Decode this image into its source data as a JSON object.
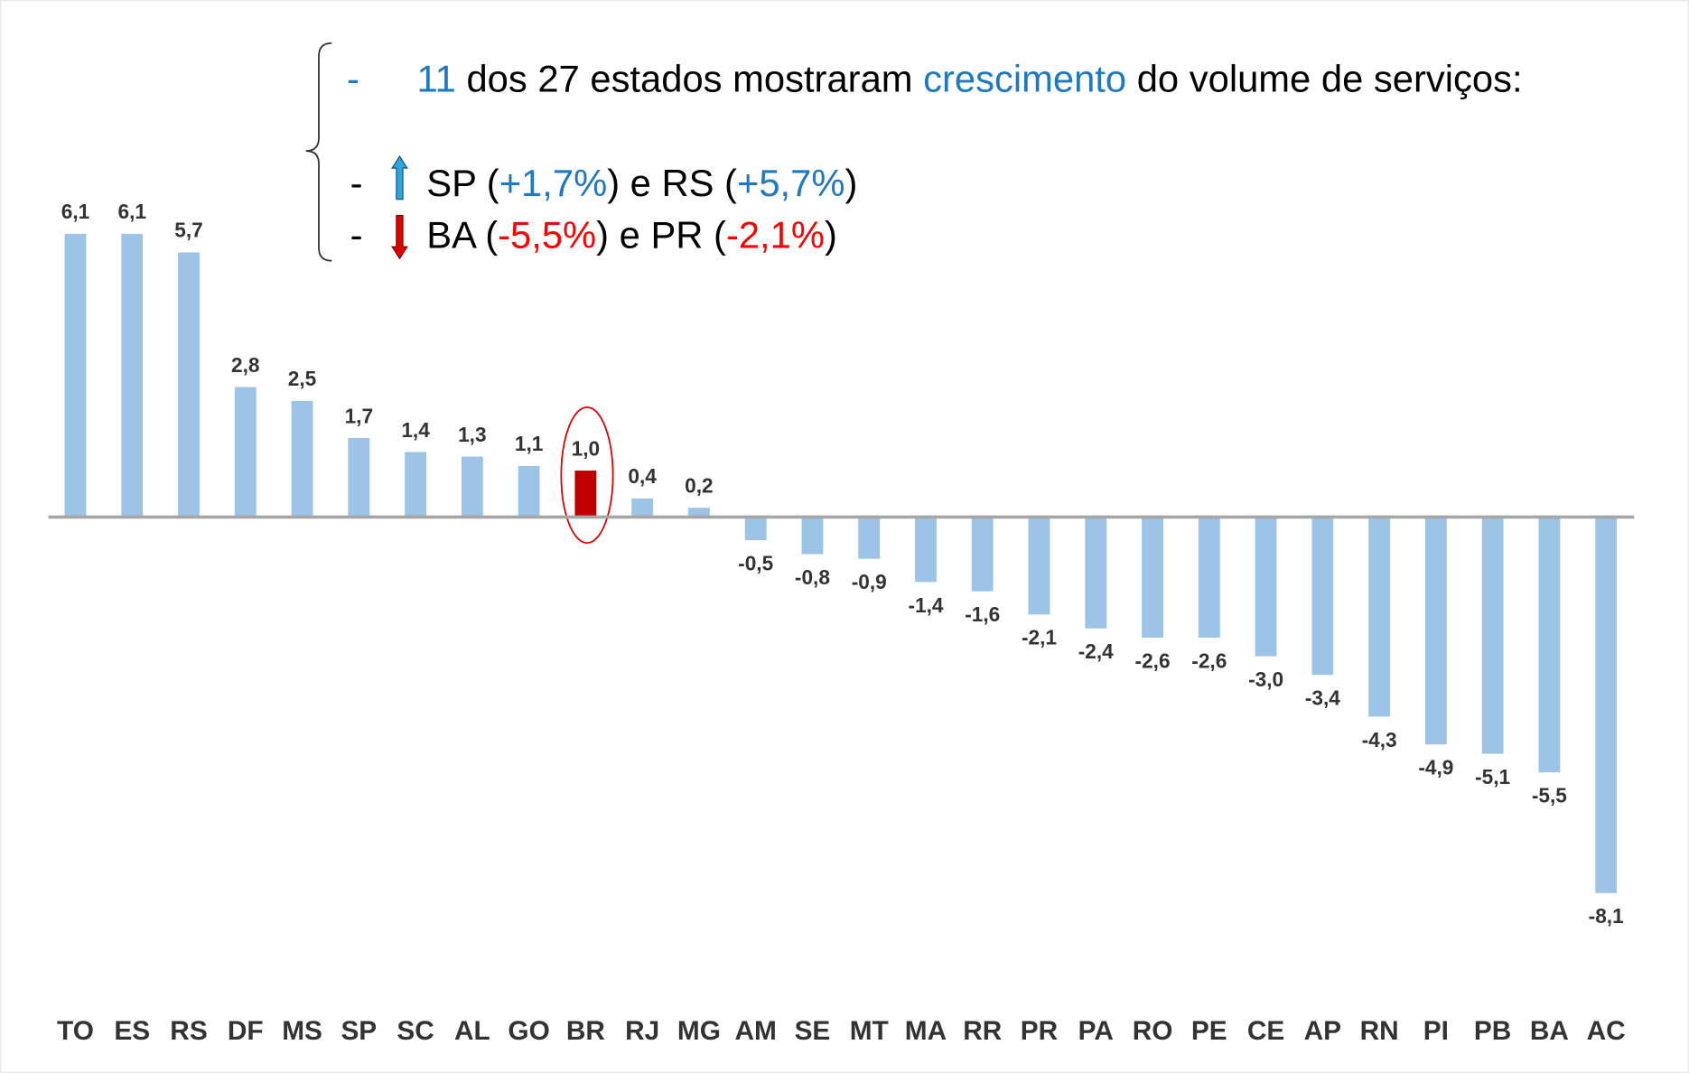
{
  "chart_data": {
    "type": "bar",
    "categories": [
      "TO",
      "ES",
      "RS",
      "DF",
      "MS",
      "SP",
      "SC",
      "AL",
      "GO",
      "BR",
      "RJ",
      "MG",
      "AM",
      "SE",
      "MT",
      "MA",
      "RR",
      "PR",
      "PA",
      "RO",
      "PE",
      "CE",
      "AP",
      "RN",
      "PI",
      "PB",
      "BA",
      "AC"
    ],
    "values": [
      6.1,
      6.1,
      5.7,
      2.8,
      2.5,
      1.7,
      1.4,
      1.3,
      1.1,
      1.0,
      0.4,
      0.2,
      -0.5,
      -0.8,
      -0.9,
      -1.4,
      -1.6,
      -2.1,
      -2.4,
      -2.6,
      -2.6,
      -3.0,
      -3.4,
      -4.3,
      -4.9,
      -5.1,
      -5.5,
      -8.1
    ],
    "value_labels": [
      "6,1",
      "6,1",
      "5,7",
      "2,8",
      "2,5",
      "1,7",
      "1,4",
      "1,3",
      "1,1",
      "1,0",
      "0,4",
      "0,2",
      "-0,5",
      "-0,8",
      "-0,9",
      "-1,4",
      "-1,6",
      "-2,1",
      "-2,4",
      "-2,6",
      "-2,6",
      "-3,0",
      "-3,4",
      "-4,3",
      "-4,9",
      "-5,1",
      "-5,5",
      "-8,1"
    ],
    "colors": [
      "#9dc3e6",
      "#9dc3e6",
      "#9dc3e6",
      "#9dc3e6",
      "#9dc3e6",
      "#9dc3e6",
      "#9dc3e6",
      "#9dc3e6",
      "#9dc3e6",
      "#c00000",
      "#9dc3e6",
      "#9dc3e6",
      "#9dc3e6",
      "#9dc3e6",
      "#9dc3e6",
      "#9dc3e6",
      "#9dc3e6",
      "#9dc3e6",
      "#9dc3e6",
      "#9dc3e6",
      "#9dc3e6",
      "#9dc3e6",
      "#9dc3e6",
      "#9dc3e6",
      "#9dc3e6",
      "#9dc3e6",
      "#9dc3e6",
      "#9dc3e6"
    ],
    "annotations": [
      [
        {
          "text": "-",
          "color": "#1f78c1"
        },
        {
          "text": "11",
          "color": "#1f78c1"
        },
        {
          "text": " dos 27 estados mostraram ",
          "color": "#000000"
        },
        {
          "text": "crescimento",
          "color": "#1f78c1"
        },
        {
          "text": " do volume de serviços:",
          "color": "#000000"
        }
      ],
      [
        {
          "text": "-",
          "color": "#000000"
        },
        {
          "text": "SP (",
          "color": "#000000"
        },
        {
          "text": "+1,7%",
          "color": "#1f78c1"
        },
        {
          "text": ") e RS (",
          "color": "#000000"
        },
        {
          "text": "+5,7%",
          "color": "#1f78c1"
        },
        {
          "text": ")",
          "color": "#000000"
        }
      ],
      [
        {
          "text": "-",
          "color": "#000000"
        },
        {
          "text": "BA (",
          "color": "#000000"
        },
        {
          "text": "-5,5%",
          "color": "#ff0000"
        },
        {
          "text": ") e PR (",
          "color": "#000000"
        },
        {
          "text": "-2,1%",
          "color": "#ff0000"
        },
        {
          "text": ")",
          "color": "#000000"
        }
      ]
    ]
  }
}
